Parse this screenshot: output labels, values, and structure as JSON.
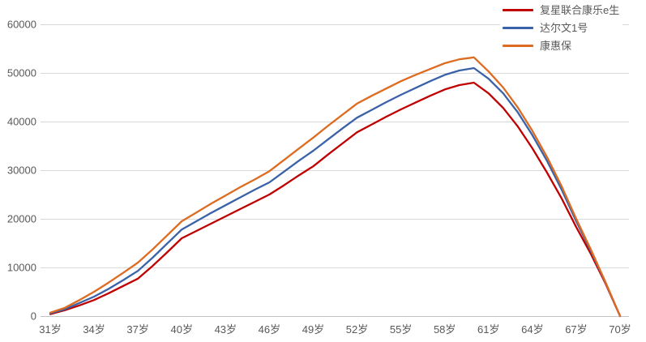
{
  "chart_data": {
    "type": "line",
    "title": "",
    "xlabel": "",
    "ylabel": "",
    "x": [
      31,
      32,
      33,
      34,
      35,
      36,
      37,
      38,
      39,
      40,
      41,
      42,
      43,
      44,
      45,
      46,
      47,
      48,
      49,
      50,
      51,
      52,
      53,
      54,
      55,
      56,
      57,
      58,
      59,
      60,
      61,
      62,
      63,
      64,
      65,
      66,
      67,
      68,
      69,
      70
    ],
    "x_unit": "岁",
    "x_tick_ages": [
      31,
      34,
      37,
      40,
      43,
      46,
      49,
      52,
      55,
      58,
      61,
      64,
      67,
      70
    ],
    "x_tick_labels": [
      "31岁",
      "34岁",
      "37岁",
      "40岁",
      "43岁",
      "46岁",
      "49岁",
      "52岁",
      "55岁",
      "58岁",
      "61岁",
      "64岁",
      "67岁",
      "70岁"
    ],
    "ylim": [
      0,
      60000
    ],
    "y_ticks": [
      0,
      10000,
      20000,
      30000,
      40000,
      50000,
      60000
    ],
    "y_tick_labels": [
      "0",
      "10000",
      "20000",
      "30000",
      "40000",
      "50000",
      "60000"
    ],
    "grid": "horizontal",
    "legend_position": "top-right",
    "series": [
      {
        "name": "复星联合康乐e生",
        "color": "#c00000",
        "values": [
          400,
          1200,
          2200,
          3300,
          4700,
          6200,
          7700,
          10300,
          13100,
          16000,
          17500,
          19000,
          20500,
          22000,
          23500,
          25000,
          26900,
          28900,
          30800,
          33200,
          35500,
          37800,
          39400,
          41000,
          42500,
          43900,
          45300,
          46600,
          47500,
          48000,
          45800,
          42800,
          39000,
          34500,
          29500,
          24200,
          18300,
          12800,
          6700,
          0
        ]
      },
      {
        "name": "达尔文1号",
        "color": "#3a62a8",
        "values": [
          550,
          1400,
          2700,
          4000,
          5600,
          7400,
          9300,
          12000,
          14900,
          17800,
          19500,
          21200,
          22800,
          24400,
          26000,
          27500,
          29700,
          31900,
          34000,
          36300,
          38600,
          40800,
          42400,
          44000,
          45500,
          46900,
          48300,
          49600,
          50500,
          51000,
          48800,
          45800,
          41900,
          37200,
          31900,
          26000,
          19500,
          13400,
          6900,
          0
        ]
      },
      {
        "name": "康惠保",
        "color": "#dd6b20",
        "values": [
          700,
          1700,
          3300,
          5000,
          6900,
          8900,
          11000,
          13700,
          16600,
          19500,
          21300,
          23100,
          24800,
          26500,
          28100,
          29800,
          32100,
          34400,
          36700,
          39100,
          41400,
          43700,
          45300,
          46800,
          48300,
          49600,
          50800,
          52000,
          52800,
          53200,
          50300,
          47000,
          42900,
          38100,
          32700,
          26700,
          20000,
          13700,
          7000,
          0
        ]
      }
    ]
  },
  "colors": {
    "grid": "#d9d9d9",
    "axis": "#c3c3c3",
    "tick_text": "#595959",
    "background": "#ffffff"
  }
}
